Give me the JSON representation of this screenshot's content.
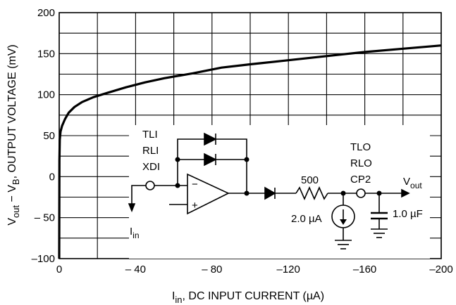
{
  "chart_data": {
    "type": "line",
    "xlabel": {
      "base": "I",
      "sub": "in",
      "rest": ", DC INPUT CURRENT (µA)"
    },
    "ylabel": {
      "p1": "V",
      "s1": "out",
      "p2": " − V",
      "s2": "B",
      "p3": ", OUTPUT VOLTAGE (mV)"
    },
    "xlim": [
      0,
      -200
    ],
    "ylim": [
      -100,
      200
    ],
    "x_ticks": [
      0,
      -20,
      -40,
      -60,
      -80,
      -100,
      -120,
      -140,
      -160,
      -180,
      -200
    ],
    "x_tick_labels": [
      "0",
      "",
      "– 40",
      "",
      "– 80",
      "",
      "–120",
      "",
      "–160",
      "",
      "–200"
    ],
    "y_ticks": [
      -100,
      -75,
      -50,
      -25,
      0,
      25,
      50,
      75,
      100,
      125,
      150,
      175,
      200
    ],
    "y_tick_labels": [
      "–100",
      "",
      "– 50",
      "",
      "0",
      "",
      "50",
      "",
      "100",
      "",
      "150",
      "",
      "200"
    ],
    "grid": true,
    "series": [
      {
        "x": [
          0,
          -0.1,
          -0.3,
          -0.7,
          -1.5,
          -3,
          -5,
          -8,
          -12,
          -18,
          -25,
          -35,
          -45,
          -55,
          -70,
          -85,
          -100,
          -120,
          -140,
          -160,
          -180,
          -200
        ],
        "y": [
          -100,
          20,
          45,
          55,
          62,
          70,
          78,
          85,
          91,
          97,
          102,
          109,
          115,
          120,
          126,
          133,
          137,
          142,
          147,
          152,
          156,
          160
        ]
      }
    ]
  },
  "schematic": {
    "input_labels": [
      "TLI",
      "RLI",
      "XDI"
    ],
    "output_labels": [
      "TLO",
      "RLO",
      "CP2"
    ],
    "resistor": "500",
    "current_source": "2.0 µA",
    "capacitor": "1.0 µF",
    "opamp_minus": "−",
    "opamp_plus": "+",
    "iin": {
      "base": "I",
      "sub": "in"
    },
    "vout": {
      "base": "V",
      "sub": "out"
    }
  }
}
